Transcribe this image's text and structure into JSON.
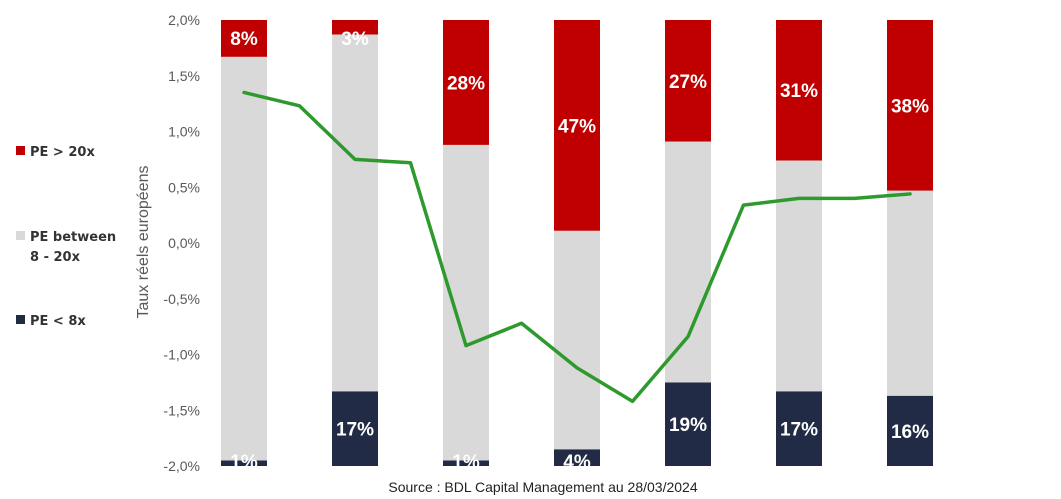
{
  "chart_data": {
    "type": "bar",
    "stacked": true,
    "y_axis_label": "Taux réels européens",
    "ylim": [
      -2.0,
      2.0
    ],
    "y_ticks": [
      "2,0%",
      "1,5%",
      "1,0%",
      "0,5%",
      "0,0%",
      "-0,5%",
      "-1,0%",
      "-1,5%",
      "-2,0%"
    ],
    "series": [
      {
        "name": "PE < 8x",
        "key": "low",
        "color": "#222b45",
        "labels": [
          "1%",
          "17%",
          "1%",
          "4%",
          "19%",
          "17%",
          "16%"
        ]
      },
      {
        "name": "PE between 8 - 20x",
        "key": "mid",
        "color": "#d9d9d9",
        "labels": [
          "",
          "",
          "",
          "",
          "",
          "",
          ""
        ]
      },
      {
        "name": "PE > 20x",
        "key": "high",
        "color": "#c00000",
        "labels": [
          "8%",
          "3%",
          "28%",
          "47%",
          "27%",
          "31%",
          "38%"
        ]
      }
    ],
    "bar_stacks": [
      {
        "low_top": -1.95,
        "mid_top": 1.67
      },
      {
        "low_top": -1.33,
        "mid_top": 1.87
      },
      {
        "low_top": -1.95,
        "mid_top": 0.88
      },
      {
        "low_top": -1.85,
        "mid_top": 0.11
      },
      {
        "low_top": -1.25,
        "mid_top": 0.91
      },
      {
        "low_top": -1.33,
        "mid_top": 0.74
      },
      {
        "low_top": -1.37,
        "mid_top": 0.47
      }
    ],
    "line": {
      "name": "Taux réels européens",
      "color": "#2e9a2e",
      "x": [
        0,
        0.5,
        1,
        1.5,
        2,
        2.5,
        3,
        3.5,
        4,
        4.5,
        5,
        5.5,
        6
      ],
      "values": [
        1.35,
        1.23,
        0.75,
        0.72,
        -0.92,
        -0.72,
        -1.12,
        -1.42,
        -0.84,
        0.34,
        0.4,
        0.4,
        0.44
      ]
    },
    "legend": [
      {
        "text": "PE > 20x",
        "color": "#c00000",
        "lines": [
          "PE > 20x"
        ]
      },
      {
        "text": "PE between 8 - 20x",
        "color": "#d9d9d9",
        "lines": [
          "PE between",
          "8 - 20x"
        ]
      },
      {
        "text": "PE < 8x",
        "color": "#222b45",
        "lines": [
          "PE < 8x"
        ]
      }
    ],
    "legend_position": "left",
    "source": "Source : BDL Capital Management au 28/03/2024"
  }
}
